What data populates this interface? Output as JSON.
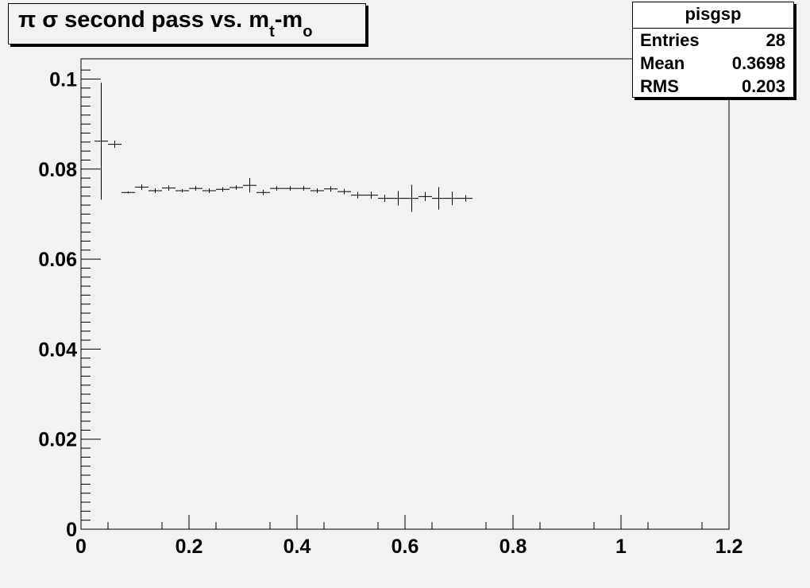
{
  "title": {
    "pi": "π",
    "sigma": "σ",
    "text": "second pass vs. m",
    "sub_t": "t",
    "dash": "-m",
    "sub_o": "o"
  },
  "stats": {
    "name": "pisgsp",
    "rows": [
      {
        "label": "Entries",
        "value": "28"
      },
      {
        "label": "Mean",
        "value": "0.3698"
      },
      {
        "label": "RMS",
        "value": "0.203"
      }
    ]
  },
  "chart_data": {
    "type": "scatter",
    "title": "π σ second pass vs. m_t-m_o",
    "xlabel": "",
    "ylabel": "",
    "xlim": [
      0,
      1.2
    ],
    "ylim": [
      0,
      0.1045
    ],
    "x_ticks": [
      "0",
      "0.2",
      "0.4",
      "0.6",
      "0.8",
      "1",
      "1.2"
    ],
    "y_ticks": [
      "0",
      "0.02",
      "0.04",
      "0.06",
      "0.08",
      "0.1"
    ],
    "bin_width": 0.025,
    "grid": false,
    "legend": "top-right stats box",
    "points": [
      {
        "x": 0.0375,
        "y": 0.0862,
        "err": 0.013
      },
      {
        "x": 0.0625,
        "y": 0.0855,
        "err": 0.0008
      },
      {
        "x": 0.0875,
        "y": 0.0748,
        "err": 0.0002
      },
      {
        "x": 0.1125,
        "y": 0.076,
        "err": 0.0006
      },
      {
        "x": 0.1375,
        "y": 0.0752,
        "err": 0.0005
      },
      {
        "x": 0.1625,
        "y": 0.0758,
        "err": 0.0006
      },
      {
        "x": 0.1875,
        "y": 0.0752,
        "err": 0.0004
      },
      {
        "x": 0.2125,
        "y": 0.0757,
        "err": 0.0005
      },
      {
        "x": 0.2375,
        "y": 0.0752,
        "err": 0.0005
      },
      {
        "x": 0.2625,
        "y": 0.0755,
        "err": 0.0005
      },
      {
        "x": 0.2875,
        "y": 0.0759,
        "err": 0.0005
      },
      {
        "x": 0.3125,
        "y": 0.0764,
        "err": 0.0016
      },
      {
        "x": 0.3375,
        "y": 0.0748,
        "err": 0.0006
      },
      {
        "x": 0.3625,
        "y": 0.0757,
        "err": 0.0005
      },
      {
        "x": 0.3875,
        "y": 0.0757,
        "err": 0.0005
      },
      {
        "x": 0.4125,
        "y": 0.0757,
        "err": 0.0005
      },
      {
        "x": 0.4375,
        "y": 0.0752,
        "err": 0.0005
      },
      {
        "x": 0.4625,
        "y": 0.0756,
        "err": 0.0006
      },
      {
        "x": 0.4875,
        "y": 0.075,
        "err": 0.0006
      },
      {
        "x": 0.5125,
        "y": 0.0742,
        "err": 0.0007
      },
      {
        "x": 0.5375,
        "y": 0.0742,
        "err": 0.0008
      },
      {
        "x": 0.5625,
        "y": 0.0735,
        "err": 0.0008
      },
      {
        "x": 0.5875,
        "y": 0.0735,
        "err": 0.0016
      },
      {
        "x": 0.6125,
        "y": 0.0735,
        "err": 0.003
      },
      {
        "x": 0.6375,
        "y": 0.0739,
        "err": 0.001
      },
      {
        "x": 0.6625,
        "y": 0.0735,
        "err": 0.0025
      },
      {
        "x": 0.6875,
        "y": 0.0735,
        "err": 0.0015
      },
      {
        "x": 0.7125,
        "y": 0.0735,
        "err": 0.0007
      }
    ]
  }
}
